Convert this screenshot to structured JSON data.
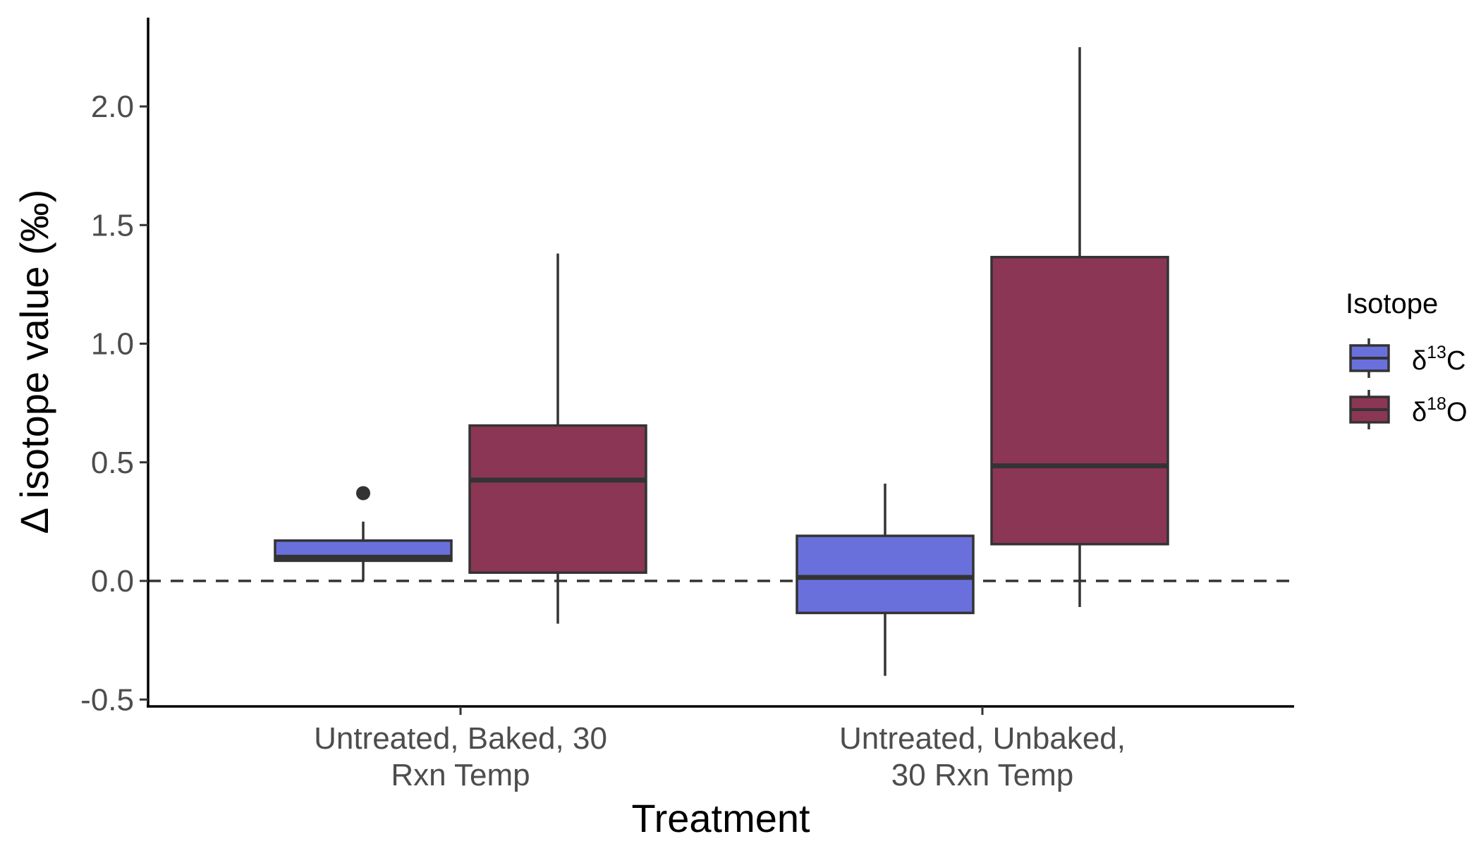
{
  "chart_data": {
    "type": "boxplot",
    "xlabel": "Treatment",
    "ylabel": "Δ isotope value  (‰)",
    "ylim": [
      -0.5,
      2.3
    ],
    "yticks": [
      -0.5,
      0.0,
      0.5,
      1.0,
      1.5,
      2.0
    ],
    "ytick_labels": [
      "-0.5",
      "0.0",
      "0.5",
      "1.0",
      "1.5",
      "2.0"
    ],
    "reference_line": {
      "y": 0.0,
      "style": "dashed"
    },
    "categories": [
      {
        "lines": [
          "Untreated, Baked, 30",
          "Rxn Temp"
        ]
      },
      {
        "lines": [
          "Untreated, Unbaked,",
          "30 Rxn Temp"
        ]
      }
    ],
    "legend": {
      "title": "Isotope",
      "placement": "right",
      "entries": [
        {
          "base": "δ",
          "sup": "13",
          "suffix": "C",
          "color": "#6a70db"
        },
        {
          "base": "δ",
          "sup": "18",
          "suffix": "O",
          "color": "#8b3654"
        }
      ]
    },
    "series": [
      {
        "color": "#6a70db",
        "boxes": [
          {
            "whisker_low": 0.0,
            "q1": 0.085,
            "median": 0.1,
            "q3": 0.17,
            "whisker_high": 0.25,
            "outliers": [
              0.37
            ]
          },
          {
            "whisker_low": -0.4,
            "q1": -0.135,
            "median": 0.015,
            "q3": 0.19,
            "whisker_high": 0.41,
            "outliers": []
          }
        ]
      },
      {
        "color": "#8b3654",
        "boxes": [
          {
            "whisker_low": -0.18,
            "q1": 0.035,
            "median": 0.425,
            "q3": 0.655,
            "whisker_high": 1.38,
            "outliers": []
          },
          {
            "whisker_low": -0.11,
            "q1": 0.155,
            "median": 0.485,
            "q3": 1.365,
            "whisker_high": 2.25,
            "outliers": []
          }
        ]
      }
    ]
  }
}
